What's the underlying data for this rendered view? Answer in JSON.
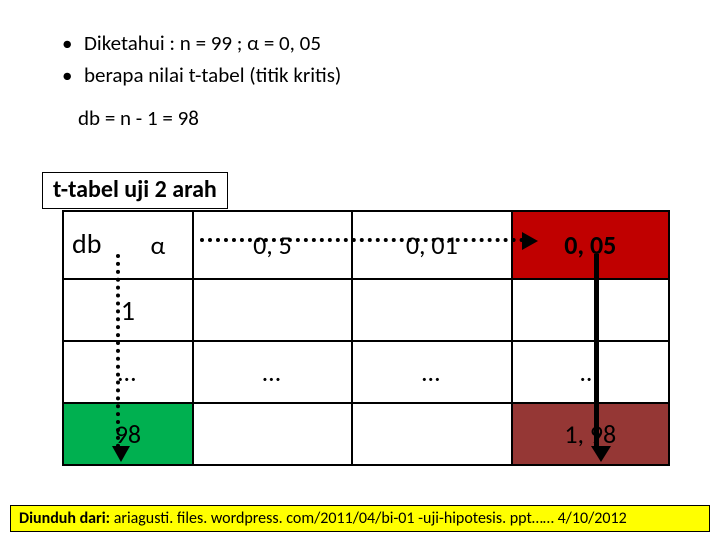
{
  "bullets": {
    "line1": "Diketahui : n = 99 ;   α = 0, 05",
    "line2": "berapa nilai t-tabel (titik kritis)"
  },
  "db_expr": "db = n - 1 = 98",
  "table_title": "t-tabel uji 2 arah",
  "header": {
    "db_label": "db",
    "alpha": "α",
    "c1": "0, 5",
    "c2": "0, 01",
    "c3": "0, 05"
  },
  "rows": {
    "r1c0": "1",
    "r2c0": "…",
    "r2c1": "…",
    "r2c2": "…",
    "r2c3": "…",
    "r3c0": "98",
    "r3c3": "1, 98"
  },
  "footer": {
    "bold": "Diunduh dari:",
    "rest": "  ariagusti. files. wordpress. com/2011/04/bi-01 -uji-hipotesis. ppt…… 4/10/2012"
  },
  "colors": {
    "green": "#00b050",
    "red_header": "#c00000",
    "dark_red": "#953735",
    "yellow": "#ffff00"
  }
}
